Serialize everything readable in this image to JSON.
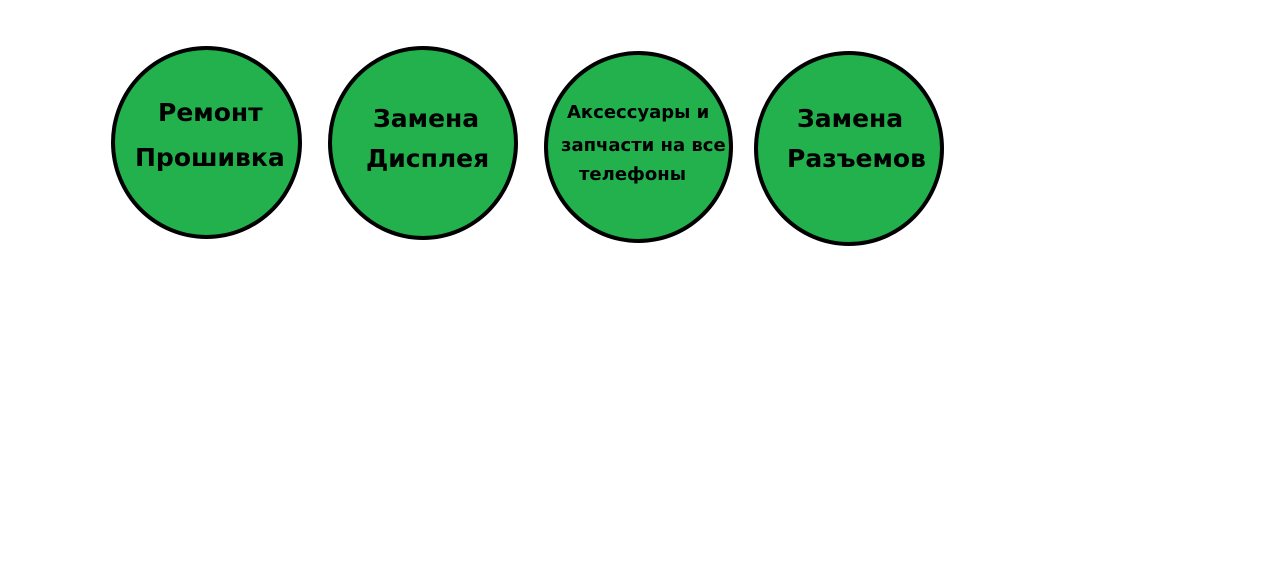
{
  "background_color": "#ffffff",
  "circle_fill_color": "#22b14c",
  "circle_border_color": "#000000",
  "services": [
    {
      "lines": [
        "Ремонт",
        "Прошивка"
      ]
    },
    {
      "lines": [
        "Замена",
        "Дисплея"
      ]
    },
    {
      "lines": [
        "Аксессуары и",
        "запчасти на все",
        "телефоны"
      ]
    },
    {
      "lines": [
        "Замена",
        "Разъемов"
      ]
    }
  ]
}
